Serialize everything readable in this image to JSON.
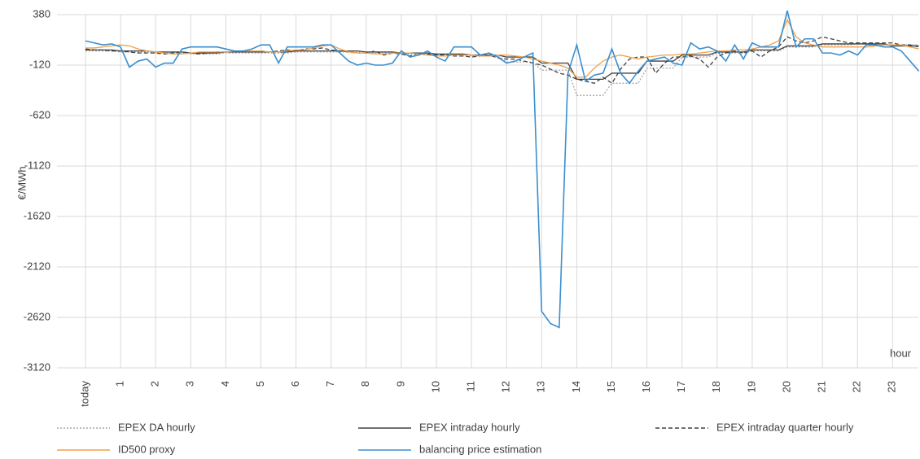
{
  "chart_data": {
    "type": "line",
    "y_axis_label": "€/MWh",
    "x_axis_label": "hour",
    "categories": [
      "today",
      null,
      null,
      null,
      "1",
      null,
      null,
      null,
      "2",
      null,
      null,
      null,
      "3",
      null,
      null,
      null,
      "4",
      null,
      null,
      null,
      "5",
      null,
      null,
      null,
      "6",
      null,
      null,
      null,
      "7",
      null,
      null,
      null,
      "8",
      null,
      null,
      null,
      "9",
      null,
      null,
      null,
      "10",
      null,
      null,
      null,
      "11",
      null,
      null,
      null,
      "12",
      null,
      null,
      null,
      "13",
      null,
      null,
      null,
      "14",
      null,
      null,
      null,
      "15",
      null,
      null,
      null,
      "16",
      null,
      null,
      null,
      "17",
      null,
      null,
      null,
      "18",
      null,
      null,
      null,
      "19",
      null,
      null,
      null,
      "20",
      null,
      null,
      null,
      "21",
      null,
      null,
      null,
      "22",
      null,
      null,
      null,
      "23",
      null,
      null,
      null
    ],
    "ylim": [
      -3120,
      380
    ],
    "yticks": [
      380,
      -120,
      -620,
      -1120,
      -1620,
      -2120,
      -2620,
      -3120
    ],
    "grid": true,
    "series": [
      {
        "name": "EPEX DA hourly",
        "color": "#a6a6a6",
        "dash": "dotted",
        "values": [
          20,
          20,
          20,
          20,
          10,
          10,
          10,
          10,
          0,
          0,
          0,
          0,
          -10,
          -10,
          -10,
          -10,
          0,
          0,
          0,
          0,
          0,
          0,
          0,
          0,
          10,
          10,
          10,
          10,
          10,
          10,
          10,
          10,
          0,
          0,
          0,
          0,
          -10,
          -10,
          -10,
          -10,
          -20,
          -20,
          -20,
          -20,
          -30,
          -30,
          -30,
          -30,
          -90,
          -90,
          -90,
          -90,
          -170,
          -170,
          -170,
          -170,
          -420,
          -420,
          -420,
          -420,
          -300,
          -300,
          -300,
          -300,
          -150,
          -150,
          -150,
          -150,
          -40,
          -40,
          -40,
          -40,
          0,
          0,
          0,
          0,
          20,
          20,
          20,
          20,
          60,
          60,
          60,
          60,
          80,
          80,
          80,
          80,
          90,
          90,
          90,
          90,
          80,
          80,
          80,
          80
        ]
      },
      {
        "name": "EPEX intraday hourly",
        "color": "#404040",
        "dash": "solid",
        "values": [
          30,
          30,
          30,
          30,
          20,
          20,
          20,
          20,
          10,
          10,
          10,
          10,
          0,
          0,
          0,
          0,
          10,
          10,
          10,
          10,
          10,
          10,
          10,
          10,
          20,
          20,
          20,
          20,
          20,
          20,
          20,
          20,
          10,
          10,
          10,
          10,
          0,
          0,
          0,
          0,
          -10,
          -10,
          -10,
          -10,
          -20,
          -20,
          -20,
          -20,
          -40,
          -40,
          -40,
          -40,
          -100,
          -100,
          -100,
          -100,
          -260,
          -260,
          -260,
          -260,
          -200,
          -200,
          -200,
          -200,
          -80,
          -80,
          -80,
          -80,
          -20,
          -20,
          -20,
          -20,
          10,
          10,
          10,
          10,
          30,
          30,
          30,
          30,
          70,
          70,
          70,
          70,
          90,
          90,
          90,
          90,
          90,
          90,
          90,
          90,
          70,
          70,
          70,
          70
        ]
      },
      {
        "name": "EPEX intraday quarter hourly",
        "color": "#404040",
        "dash": "dashed",
        "values": [
          40,
          30,
          30,
          20,
          20,
          10,
          0,
          0,
          0,
          -10,
          0,
          10,
          0,
          -10,
          0,
          10,
          10,
          10,
          20,
          20,
          20,
          10,
          20,
          30,
          20,
          40,
          40,
          50,
          30,
          20,
          10,
          0,
          0,
          20,
          -20,
          0,
          -10,
          -30,
          0,
          -10,
          -20,
          -20,
          -30,
          -30,
          -40,
          -30,
          -20,
          -50,
          -60,
          -60,
          -80,
          -100,
          -120,
          -160,
          -200,
          -220,
          -260,
          -280,
          -300,
          -240,
          -300,
          -160,
          -60,
          -40,
          -40,
          -200,
          -100,
          -40,
          -40,
          -30,
          -60,
          -140,
          -40,
          0,
          20,
          0,
          20,
          -40,
          20,
          60,
          160,
          120,
          100,
          120,
          160,
          140,
          120,
          100,
          100,
          100,
          100,
          100,
          100,
          80,
          80,
          60
        ]
      },
      {
        "name": "ID500 proxy",
        "color": "#f0a04b",
        "dash": "solid",
        "values": [
          50,
          50,
          60,
          70,
          80,
          70,
          40,
          20,
          10,
          0,
          -10,
          -10,
          0,
          10,
          10,
          10,
          10,
          20,
          20,
          20,
          20,
          10,
          10,
          20,
          30,
          30,
          50,
          70,
          80,
          40,
          10,
          0,
          0,
          -10,
          -10,
          0,
          0,
          0,
          -10,
          -20,
          -30,
          -30,
          -20,
          -20,
          -20,
          -30,
          -30,
          -20,
          -20,
          -30,
          -40,
          -60,
          -80,
          -100,
          -120,
          -150,
          -240,
          -240,
          -150,
          -80,
          -40,
          -20,
          -40,
          -60,
          -40,
          -30,
          -20,
          -20,
          -10,
          -10,
          0,
          10,
          20,
          20,
          30,
          30,
          40,
          60,
          80,
          120,
          330,
          160,
          100,
          80,
          60,
          60,
          60,
          60,
          60,
          60,
          70,
          80,
          80,
          80,
          60,
          40
        ]
      },
      {
        "name": "balancing price estimation",
        "color": "#3a8fd0",
        "dash": "solid",
        "values": [
          120,
          100,
          80,
          90,
          60,
          -140,
          -80,
          -60,
          -140,
          -100,
          -100,
          40,
          60,
          60,
          60,
          60,
          40,
          20,
          20,
          40,
          80,
          80,
          -100,
          60,
          60,
          60,
          60,
          80,
          80,
          0,
          -80,
          -120,
          -100,
          -120,
          -120,
          -100,
          20,
          -40,
          -20,
          20,
          -40,
          -80,
          60,
          60,
          60,
          -20,
          0,
          -40,
          -100,
          -80,
          -40,
          0,
          -2560,
          -2680,
          -2720,
          -200,
          80,
          -280,
          -220,
          -200,
          40,
          -200,
          -300,
          -180,
          -80,
          -60,
          -40,
          -100,
          -120,
          100,
          40,
          60,
          20,
          -80,
          80,
          -60,
          100,
          60,
          60,
          60,
          420,
          60,
          140,
          140,
          0,
          0,
          -20,
          20,
          -20,
          80,
          80,
          60,
          60,
          20,
          -80,
          -180
        ]
      }
    ]
  }
}
